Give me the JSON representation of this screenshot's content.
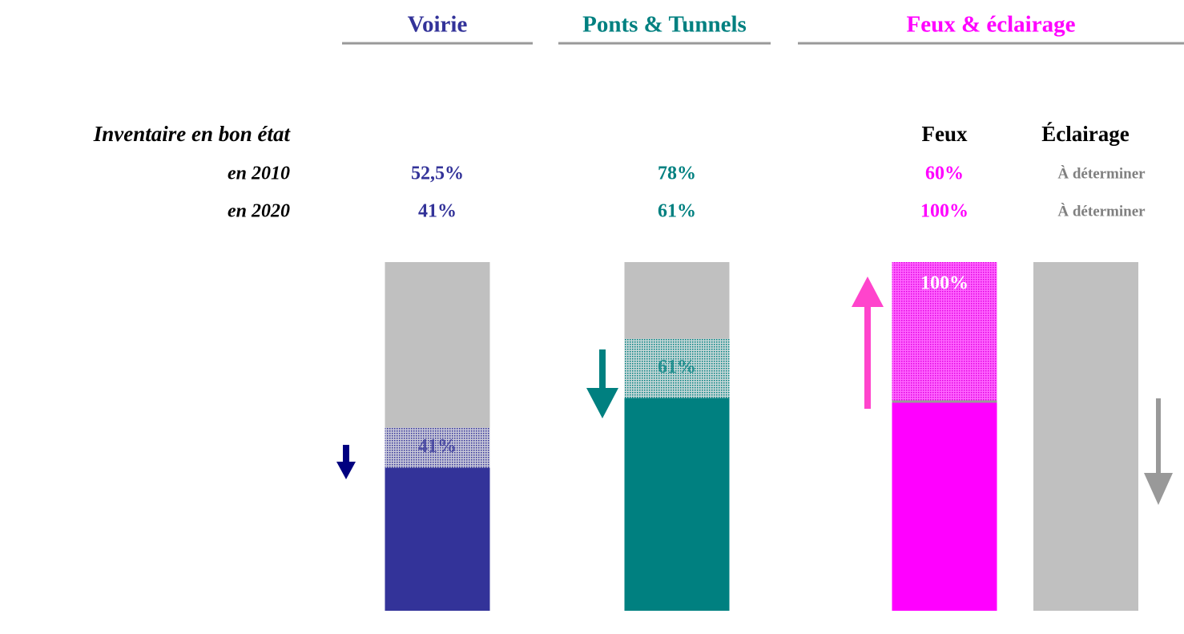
{
  "row_title": "Inventaire en bon état",
  "row_labels": [
    "en 2010",
    "en 2020"
  ],
  "groups": [
    {
      "title": "Voirie",
      "color": "#333399",
      "items": [
        {
          "values": [
            52.5,
            41
          ],
          "labels": [
            "52,5%",
            "41%"
          ]
        }
      ]
    },
    {
      "title": "Ponts & Tunnels",
      "color": "#008080",
      "items": [
        {
          "values": [
            78,
            61
          ],
          "labels": [
            "78%",
            "61%"
          ]
        }
      ]
    },
    {
      "title": "Feux & éclairage",
      "color": "#ff00ff",
      "items": [
        {
          "name": "Feux",
          "values": [
            60,
            100
          ],
          "labels": [
            "60%",
            "100%"
          ]
        },
        {
          "name": "Éclairage",
          "labels": [
            "À déterminer",
            "À déterminer"
          ],
          "color": "#808080"
        }
      ]
    }
  ]
}
